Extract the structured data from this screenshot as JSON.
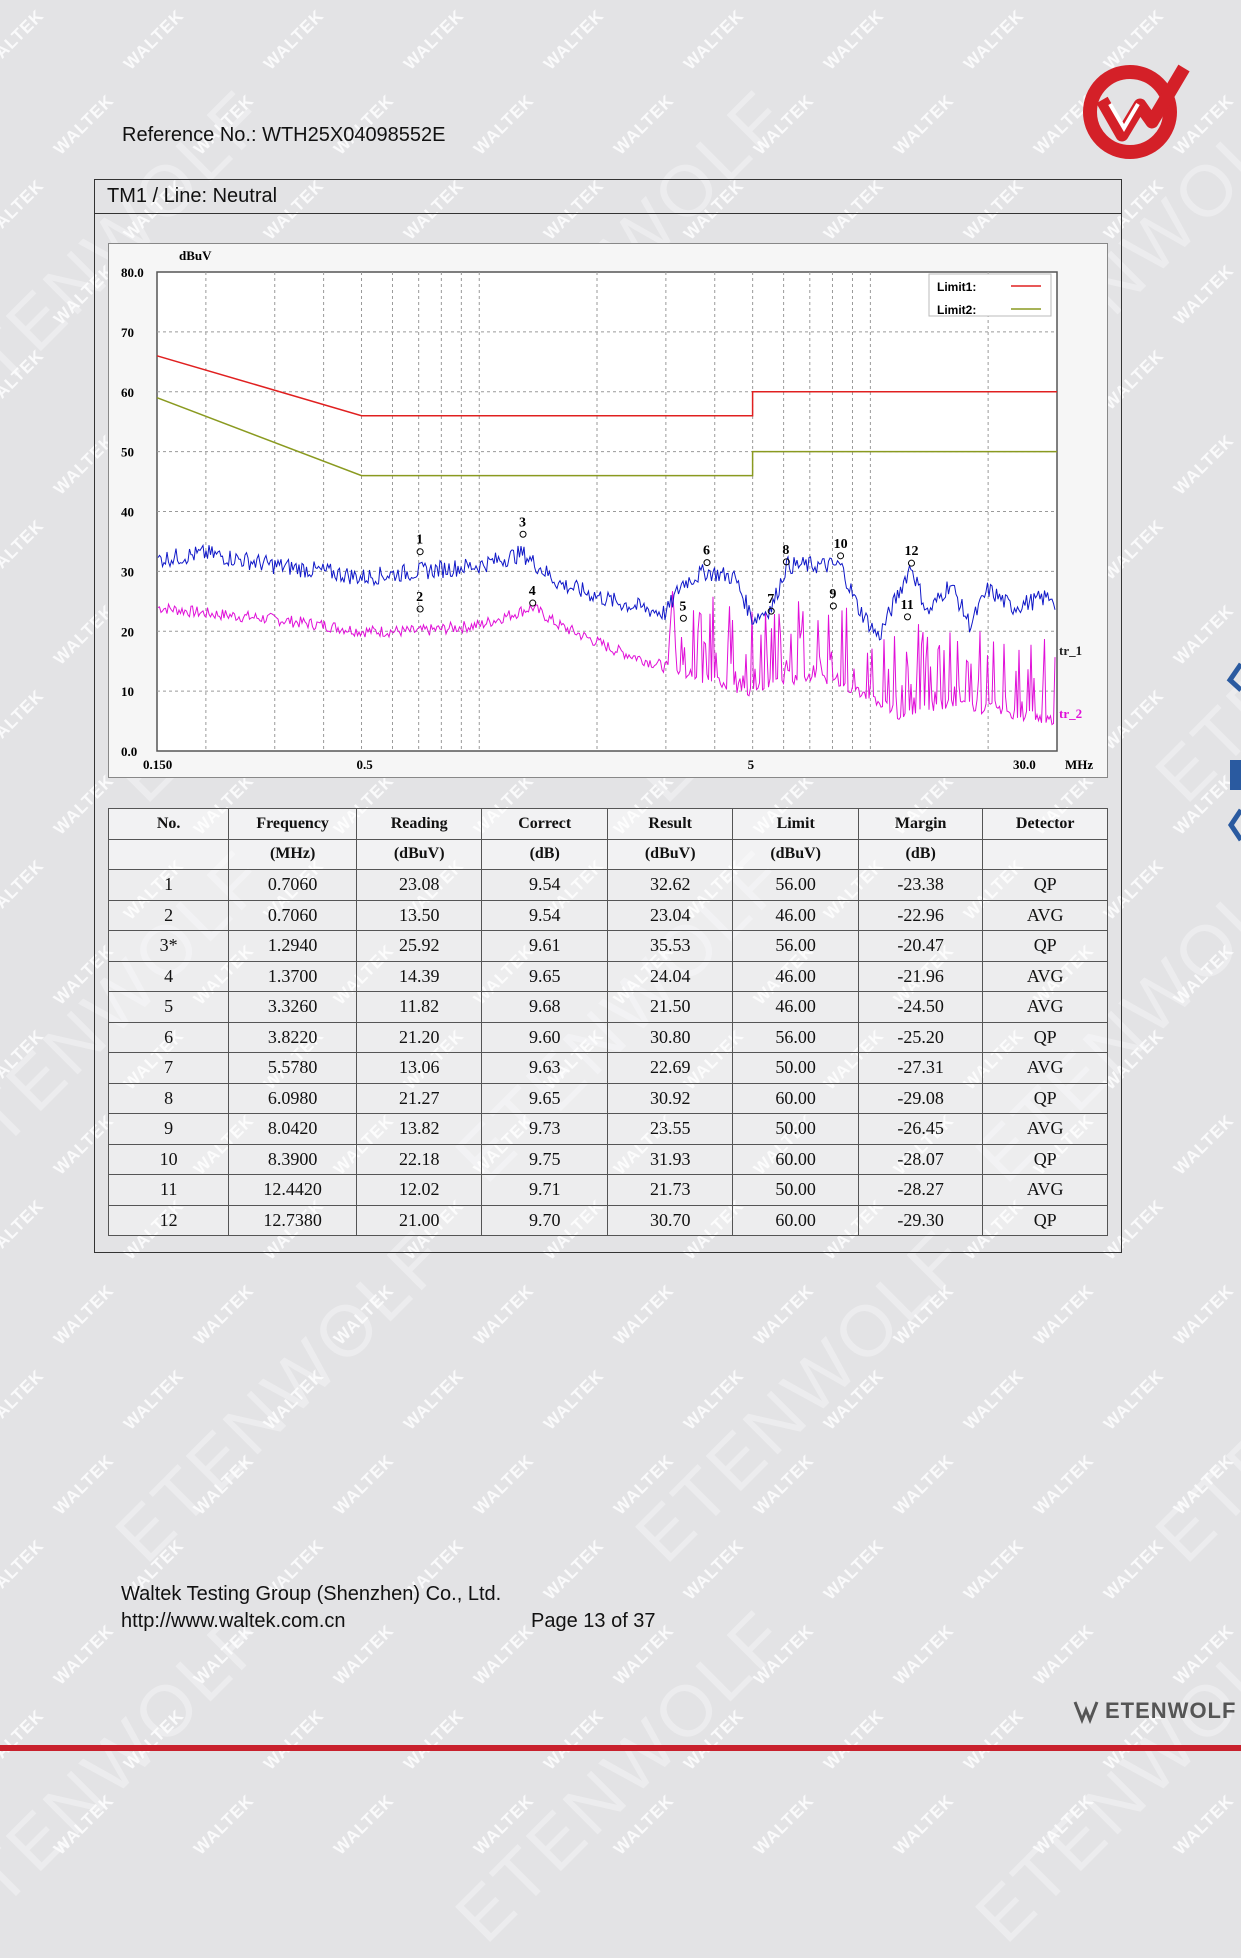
{
  "watermarks": {
    "small": "WALTEK",
    "big": "ETENWOLF"
  },
  "header": {
    "reference": "Reference No.: WTH25X04098552E"
  },
  "section": {
    "title": "TM1 / Line: Neutral"
  },
  "colors": {
    "limit1": "#e02020",
    "limit2": "#8a9a20",
    "trace1": "#1018c8",
    "trace2": "#e010d8",
    "accent": "#c8202c"
  },
  "chart_data": {
    "type": "line",
    "title": "",
    "ylabel": "dBuV",
    "xlabel": "MHz",
    "xscale": "log",
    "xlim": [
      0.15,
      30
    ],
    "ylim": [
      0,
      80
    ],
    "y_ticks": [
      "80.0",
      "70",
      "60",
      "50",
      "40",
      "30",
      "20",
      "10",
      "0.0"
    ],
    "x_ticks": [
      "0.150",
      "0.5",
      "5",
      "30.0"
    ],
    "legend": {
      "position": "top-right",
      "entries": [
        "Limit1:",
        "Limit2:"
      ]
    },
    "trace_labels": [
      "tr_1",
      "tr_2"
    ],
    "grid": true,
    "series": [
      {
        "name": "Limit1:",
        "x": [
          0.15,
          0.5,
          5,
          5,
          30
        ],
        "y": [
          66,
          56,
          56,
          60,
          60
        ]
      },
      {
        "name": "Limit2:",
        "x": [
          0.15,
          0.5,
          5,
          5,
          30
        ],
        "y": [
          59,
          46,
          46,
          50,
          50
        ]
      },
      {
        "name": "tr_1",
        "x": [
          0.15,
          0.2,
          0.3,
          0.4,
          0.5,
          0.7,
          1.0,
          1.29,
          1.6,
          2.2,
          3.0,
          3.3,
          3.8,
          4.5,
          5.0,
          5.6,
          6.1,
          7.0,
          8.4,
          9.3,
          10.5,
          12.7,
          14,
          16,
          18,
          20,
          23,
          26,
          29.5,
          30
        ],
        "y": [
          32,
          33,
          31,
          30,
          29,
          30,
          31,
          33,
          28,
          25,
          23,
          28,
          30,
          29,
          22,
          24,
          31,
          31,
          31,
          24,
          19,
          31,
          23,
          28,
          21,
          27,
          24,
          25,
          26,
          16
        ]
      },
      {
        "name": "tr_2",
        "x": [
          0.15,
          0.2,
          0.3,
          0.4,
          0.5,
          0.7,
          1.0,
          1.37,
          1.6,
          2.2,
          3.0,
          3.8,
          5.0,
          6.0,
          8.0,
          10,
          12,
          15,
          20,
          25,
          30
        ],
        "y": [
          24,
          23,
          22,
          21,
          20,
          20,
          21,
          24,
          21,
          17,
          14,
          12,
          10,
          12,
          12,
          9,
          6,
          8,
          7,
          6,
          5
        ]
      }
    ],
    "markers": [
      {
        "label": "1",
        "x": 0.706,
        "y": 32.62
      },
      {
        "label": "2",
        "x": 0.706,
        "y": 23.04
      },
      {
        "label": "3",
        "x": 1.294,
        "y": 35.53
      },
      {
        "label": "4",
        "x": 1.37,
        "y": 24.04
      },
      {
        "label": "5",
        "x": 3.326,
        "y": 21.5
      },
      {
        "label": "6",
        "x": 3.822,
        "y": 30.8
      },
      {
        "label": "7",
        "x": 5.578,
        "y": 22.69
      },
      {
        "label": "8",
        "x": 6.098,
        "y": 30.92
      },
      {
        "label": "9",
        "x": 8.042,
        "y": 23.55
      },
      {
        "label": "10",
        "x": 8.39,
        "y": 31.93
      },
      {
        "label": "11",
        "x": 12.442,
        "y": 21.73
      },
      {
        "label": "12",
        "x": 12.738,
        "y": 30.7
      }
    ]
  },
  "table": {
    "headers": [
      "No.",
      "Frequency",
      "Reading",
      "Correct",
      "Result",
      "Limit",
      "Margin",
      "Detector"
    ],
    "units": [
      "",
      "(MHz)",
      "(dBuV)",
      "(dB)",
      "(dBuV)",
      "(dBuV)",
      "(dB)",
      ""
    ],
    "rows": [
      [
        "1",
        "0.7060",
        "23.08",
        "9.54",
        "32.62",
        "56.00",
        "-23.38",
        "QP"
      ],
      [
        "2",
        "0.7060",
        "13.50",
        "9.54",
        "23.04",
        "46.00",
        "-22.96",
        "AVG"
      ],
      [
        "3*",
        "1.2940",
        "25.92",
        "9.61",
        "35.53",
        "56.00",
        "-20.47",
        "QP"
      ],
      [
        "4",
        "1.3700",
        "14.39",
        "9.65",
        "24.04",
        "46.00",
        "-21.96",
        "AVG"
      ],
      [
        "5",
        "3.3260",
        "11.82",
        "9.68",
        "21.50",
        "46.00",
        "-24.50",
        "AVG"
      ],
      [
        "6",
        "3.8220",
        "21.20",
        "9.60",
        "30.80",
        "56.00",
        "-25.20",
        "QP"
      ],
      [
        "7",
        "5.5780",
        "13.06",
        "9.63",
        "22.69",
        "50.00",
        "-27.31",
        "AVG"
      ],
      [
        "8",
        "6.0980",
        "21.27",
        "9.65",
        "30.92",
        "60.00",
        "-29.08",
        "QP"
      ],
      [
        "9",
        "8.0420",
        "13.82",
        "9.73",
        "23.55",
        "50.00",
        "-26.45",
        "AVG"
      ],
      [
        "10",
        "8.3900",
        "22.18",
        "9.75",
        "31.93",
        "60.00",
        "-28.07",
        "QP"
      ],
      [
        "11",
        "12.4420",
        "12.02",
        "9.71",
        "21.73",
        "50.00",
        "-28.27",
        "AVG"
      ],
      [
        "12",
        "12.7380",
        "21.00",
        "9.70",
        "30.70",
        "60.00",
        "-29.30",
        "QP"
      ]
    ]
  },
  "footer": {
    "company": "Waltek Testing Group (Shenzhen) Co., Ltd.",
    "url": "http://www.waltek.com.cn",
    "page": "Page 13 of 37",
    "brand": "ETENWOLF"
  }
}
